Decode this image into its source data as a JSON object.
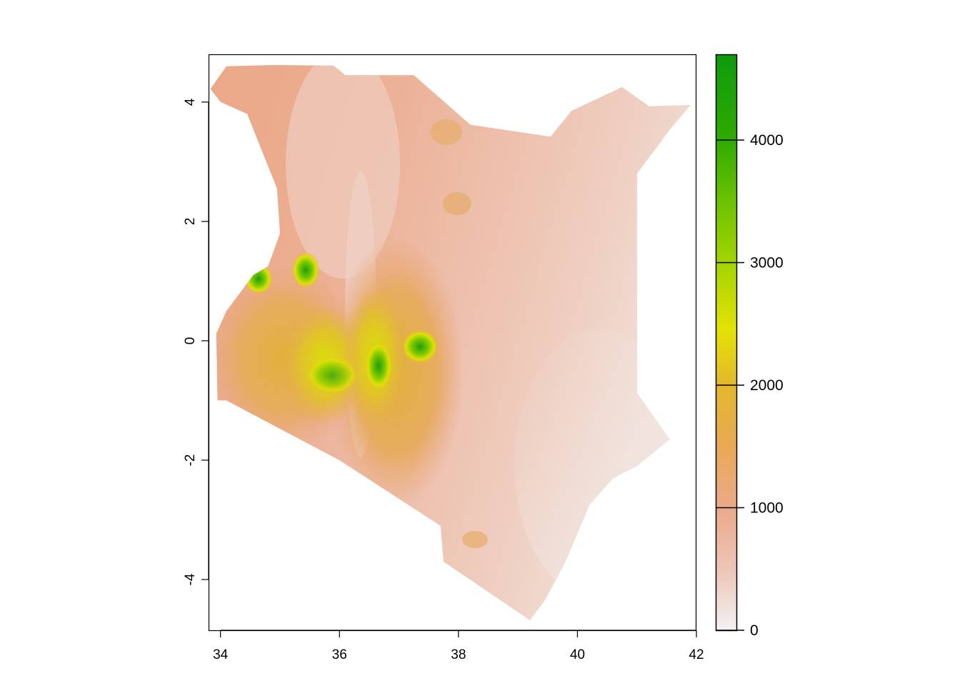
{
  "chart_data": {
    "type": "heatmap",
    "subject": "raster elevation map",
    "x_ticks": [
      "34",
      "36",
      "38",
      "40",
      "42"
    ],
    "y_ticks": [
      "4",
      "2",
      "0",
      "-2",
      "-4"
    ],
    "xlim": [
      33.8,
      42
    ],
    "ylim": [
      -4.85,
      4.8
    ],
    "colorbar": {
      "ticks": [
        "0",
        "1000",
        "2000",
        "3000",
        "4000"
      ],
      "range": [
        0,
        4700
      ],
      "colors": [
        {
          "value": 0,
          "color": "#f2f2f2"
        },
        {
          "value": 500,
          "color": "#eec4b6"
        },
        {
          "value": 1000,
          "color": "#eba98a"
        },
        {
          "value": 1500,
          "color": "#e8aa55"
        },
        {
          "value": 2000,
          "color": "#e3b72c"
        },
        {
          "value": 2450,
          "color": "#e4e205"
        },
        {
          "value": 3000,
          "color": "#a4d400"
        },
        {
          "value": 3500,
          "color": "#6cc200"
        },
        {
          "value": 4000,
          "color": "#30ab00"
        },
        {
          "value": 4700,
          "color": "#0e9a0e"
        }
      ]
    },
    "grid": false,
    "legend": "right"
  }
}
